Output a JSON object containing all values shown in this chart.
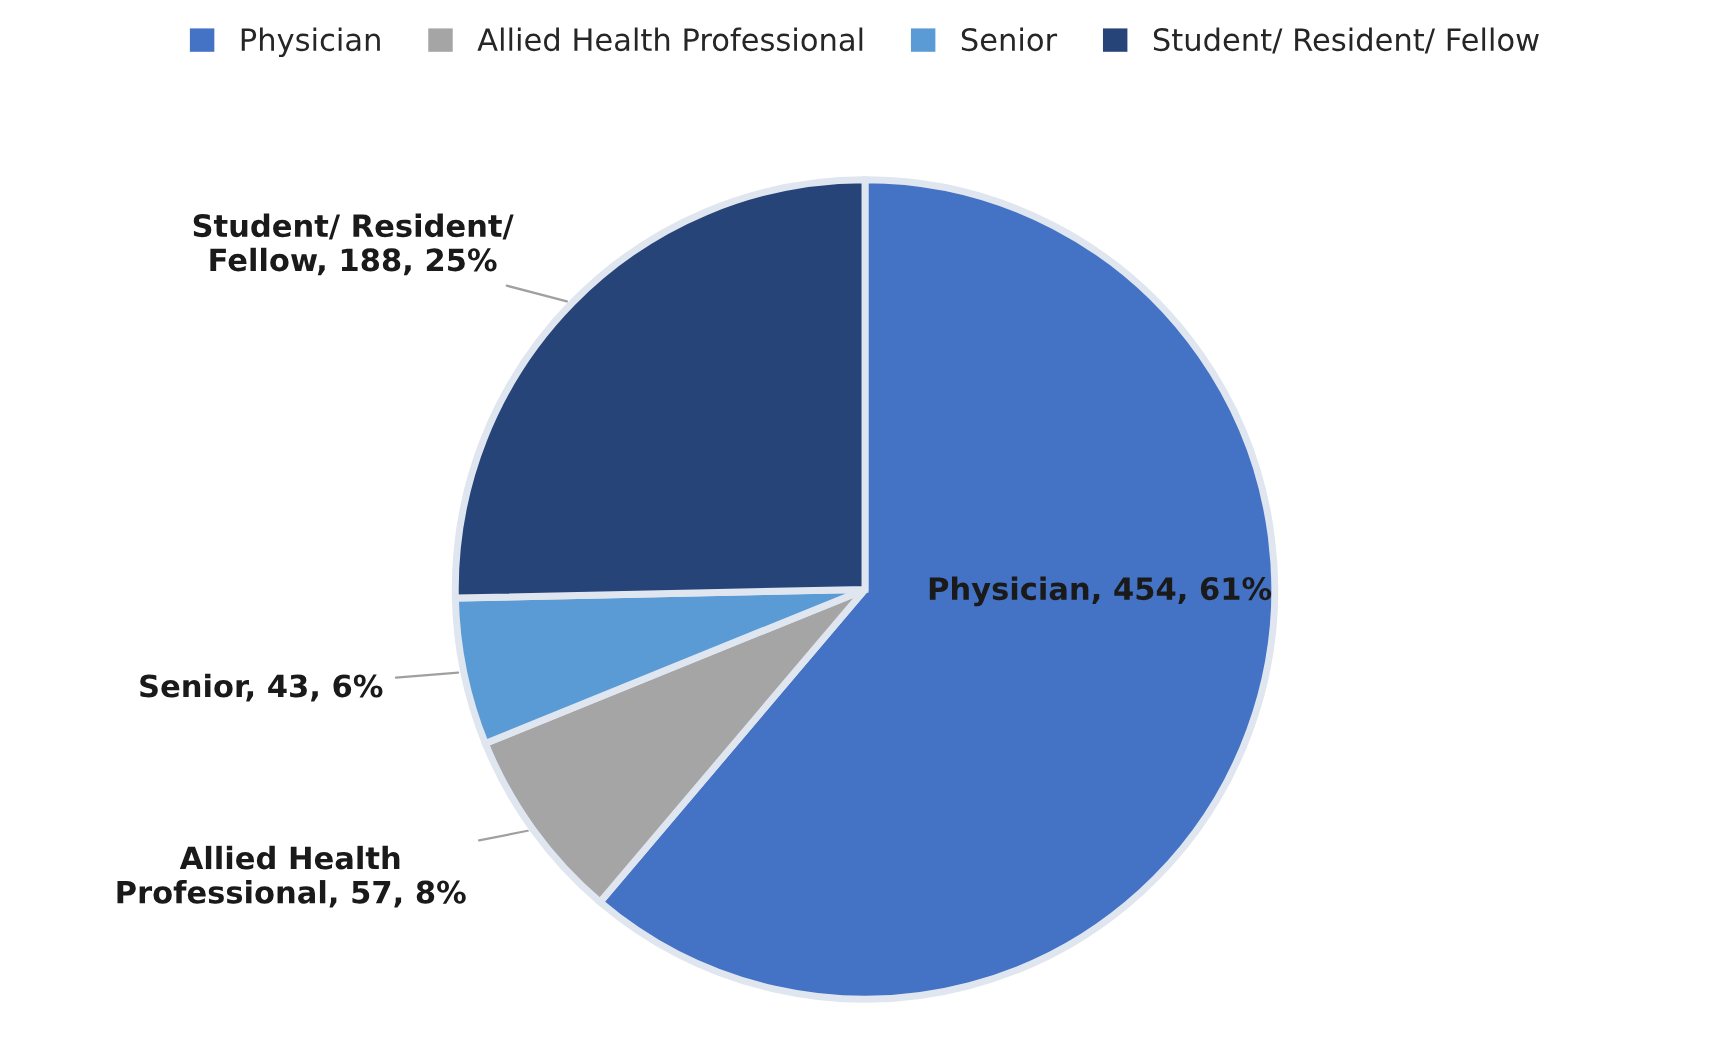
{
  "chart_data": {
    "type": "pie",
    "categories": [
      "Physician",
      "Allied Health Professional",
      "Senior",
      "Student/ Resident/ Fellow"
    ],
    "values": [
      454,
      57,
      43,
      188
    ],
    "value_labels": [
      "Physician, 454, 61%",
      "Allied Health\nProfessional, 57, 8%",
      "Senior, 43, 6%",
      "Student/ Resident/\nFellow, 188, 25%"
    ],
    "colors": [
      "#4472c4",
      "#a5a5a5",
      "#5b9bd5",
      "#264478"
    ],
    "legend": "top"
  }
}
